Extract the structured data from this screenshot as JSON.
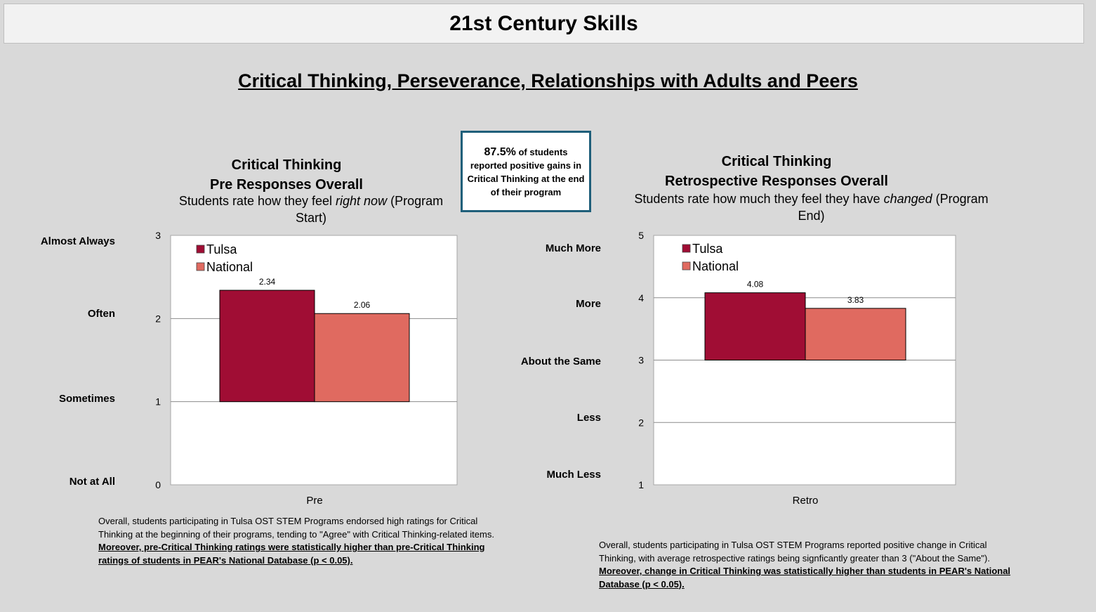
{
  "header": {
    "title": "21st Century Skills",
    "subtitle": "Critical Thinking, Perseverance, Relationships with Adults and Peers"
  },
  "callout": {
    "percent": "87.5%",
    "text": "of students reported positive gains in Critical Thinking at the end of their program"
  },
  "left_panel": {
    "title_line1": "Critical Thinking",
    "title_line2": "Pre Responses Overall",
    "desc_before": "Students rate how they feel ",
    "desc_italic": "right now",
    "desc_after": " (Program Start)",
    "category_labels": [
      "Almost Always",
      "Often",
      "Sometimes",
      "Not at All"
    ],
    "summary_text": "Overall, students participating in Tulsa OST STEM Programs endorsed high ratings for Critical Thinking at the beginning of their programs, tending to \"Agree\" with Critical Thinking-related items. ",
    "summary_emphasis": "Moreover, pre-Critical Thinking ratings were statistically higher than pre-Critical Thinking ratings of students in PEAR's National Database (p < 0.05)."
  },
  "right_panel": {
    "title_line1": "Critical Thinking",
    "title_line2": "Retrospective Responses Overall",
    "desc_before": "Students rate how much they feel  they have ",
    "desc_italic": "changed",
    "desc_after": " (Program End)",
    "category_labels": [
      "Much More",
      "More",
      "About the Same",
      "Less",
      "Much Less"
    ],
    "summary_text": "Overall, students participating in Tulsa OST STEM Programs reported positive change in Critical Thinking, with average retrospective ratings being signficantly greater than 3 (\"About the Same\"). ",
    "summary_emphasis": "Moreover, change in Critical Thinking was statistically higher than students in PEAR's National Database (p < 0.05)."
  },
  "colors": {
    "tulsa": "#a00d34",
    "national": "#e06a60",
    "callout_border": "#1f5f7a"
  },
  "chart_data": [
    {
      "type": "bar",
      "categories": [
        "Pre"
      ],
      "series": [
        {
          "name": "Tulsa",
          "values": [
            2.34
          ]
        },
        {
          "name": "National",
          "values": [
            2.06
          ]
        }
      ],
      "ylim": [
        0,
        3
      ],
      "yticks": [
        0,
        1,
        2,
        3
      ],
      "baseline": 1,
      "grid": true,
      "legend": "top-left"
    },
    {
      "type": "bar",
      "categories": [
        "Retro"
      ],
      "series": [
        {
          "name": "Tulsa",
          "values": [
            4.08
          ]
        },
        {
          "name": "National",
          "values": [
            3.83
          ]
        }
      ],
      "ylim": [
        1,
        5
      ],
      "yticks": [
        1,
        2,
        3,
        4,
        5
      ],
      "baseline": 3,
      "grid": true,
      "legend": "top-left"
    }
  ]
}
